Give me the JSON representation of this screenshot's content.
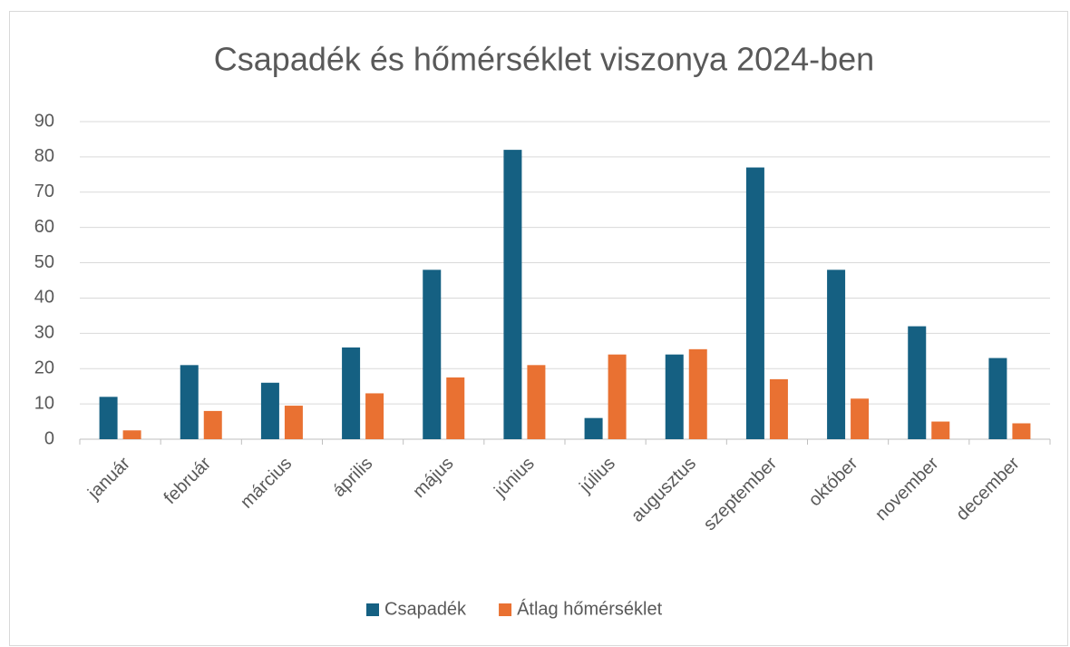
{
  "chart_data": {
    "type": "bar",
    "title": "Csapadék és hőmérséklet viszonya 2024-ben",
    "categories": [
      "január",
      "február",
      "március",
      "április",
      "május",
      "június",
      "július",
      "augusztus",
      "szeptember",
      "október",
      "november",
      "december"
    ],
    "series": [
      {
        "name": "Csapadék",
        "color": "#156082",
        "values": [
          12,
          21,
          16,
          26,
          48,
          82,
          6,
          24,
          77,
          48,
          32,
          23
        ]
      },
      {
        "name": "Átlag hőmérséklet",
        "color": "#e97132",
        "values": [
          2.5,
          8,
          9.5,
          13,
          17.5,
          21,
          24,
          25.5,
          17,
          11.5,
          5,
          4.5
        ]
      }
    ],
    "ylim": [
      0,
      90
    ],
    "yticks": [
      0,
      10,
      20,
      30,
      40,
      50,
      60,
      70,
      80,
      90
    ],
    "grid": true,
    "legend": "bottom"
  }
}
